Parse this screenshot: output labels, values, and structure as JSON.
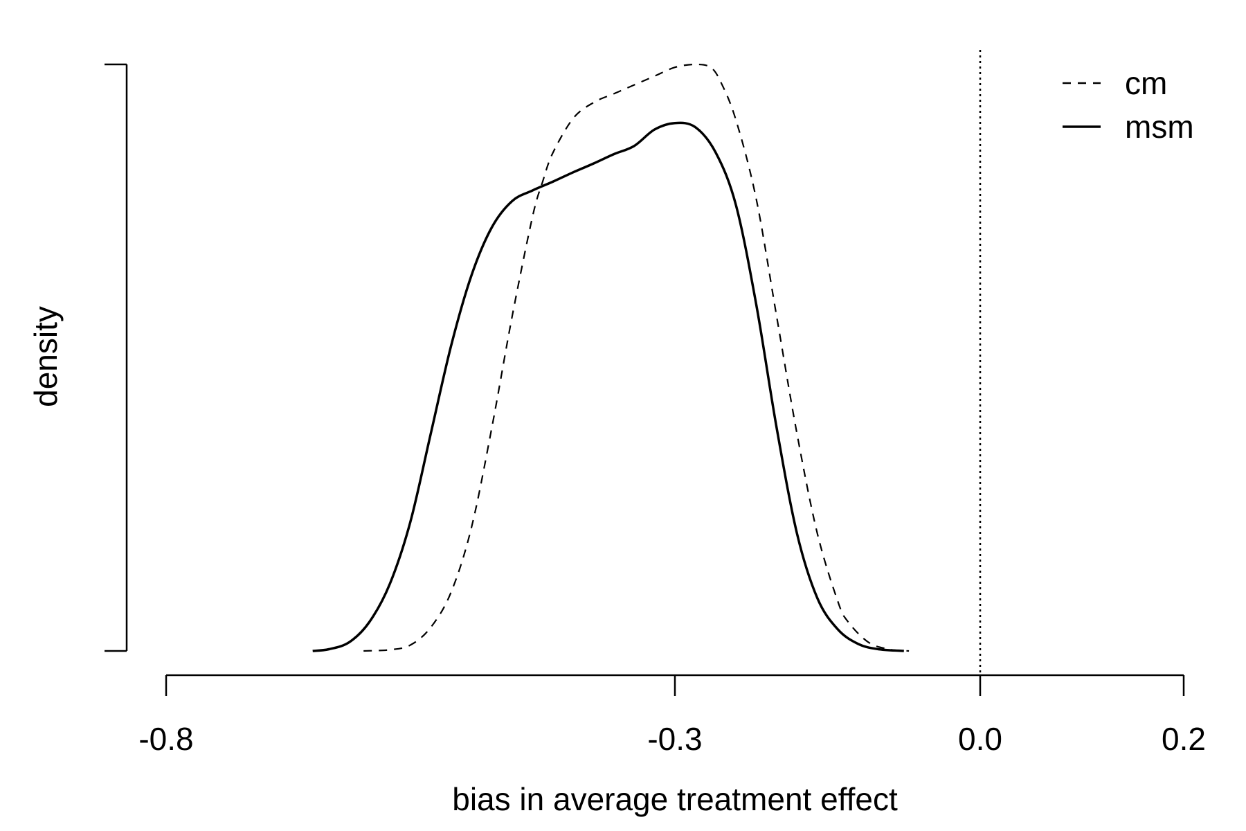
{
  "chart_data": {
    "type": "line",
    "title": "",
    "xlabel": "bias in average treatment effect",
    "ylabel": "density",
    "xlim": [
      -0.8,
      0.2
    ],
    "x_ticks": [
      {
        "value": -0.8,
        "label": "-0.8"
      },
      {
        "value": -0.3,
        "label": "-0.3"
      },
      {
        "value": 0.0,
        "label": "0.0"
      },
      {
        "value": 0.2,
        "label": "0.2"
      }
    ],
    "y_ticks": [
      0,
      1
    ],
    "y_tick_labels_shown": false,
    "reference_line": {
      "x": 0.0,
      "style": "dotted"
    },
    "grid": false,
    "legend_position": "top-right",
    "series": [
      {
        "name": "cm",
        "style": "dashed",
        "points": [
          [
            -0.606,
            0.0
          ],
          [
            -0.58,
            0.002
          ],
          [
            -0.56,
            0.01
          ],
          [
            -0.54,
            0.04
          ],
          [
            -0.52,
            0.1
          ],
          [
            -0.5,
            0.21
          ],
          [
            -0.48,
            0.38
          ],
          [
            -0.46,
            0.57
          ],
          [
            -0.44,
            0.74
          ],
          [
            -0.43,
            0.8
          ],
          [
            -0.42,
            0.849
          ],
          [
            -0.4,
            0.908
          ],
          [
            -0.38,
            0.935
          ],
          [
            -0.36,
            0.95
          ],
          [
            -0.34,
            0.965
          ],
          [
            -0.32,
            0.98
          ],
          [
            -0.3,
            0.995
          ],
          [
            -0.28,
            1.0
          ],
          [
            -0.265,
            0.995
          ],
          [
            -0.255,
            0.97
          ],
          [
            -0.24,
            0.905
          ],
          [
            -0.22,
            0.77
          ],
          [
            -0.2,
            0.57
          ],
          [
            -0.18,
            0.37
          ],
          [
            -0.16,
            0.2
          ],
          [
            -0.14,
            0.085
          ],
          [
            -0.13,
            0.05
          ],
          [
            -0.11,
            0.015
          ],
          [
            -0.09,
            0.003
          ],
          [
            -0.07,
            0.0
          ]
        ]
      },
      {
        "name": "msm",
        "style": "solid",
        "points": [
          [
            -0.656,
            0.0
          ],
          [
            -0.64,
            0.003
          ],
          [
            -0.62,
            0.015
          ],
          [
            -0.6,
            0.05
          ],
          [
            -0.58,
            0.115
          ],
          [
            -0.56,
            0.22
          ],
          [
            -0.54,
            0.37
          ],
          [
            -0.52,
            0.52
          ],
          [
            -0.5,
            0.64
          ],
          [
            -0.48,
            0.722
          ],
          [
            -0.46,
            0.767
          ],
          [
            -0.44,
            0.785
          ],
          [
            -0.42,
            0.8
          ],
          [
            -0.4,
            0.816
          ],
          [
            -0.38,
            0.831
          ],
          [
            -0.36,
            0.847
          ],
          [
            -0.34,
            0.861
          ],
          [
            -0.32,
            0.889
          ],
          [
            -0.3,
            0.9
          ],
          [
            -0.28,
            0.893
          ],
          [
            -0.26,
            0.85
          ],
          [
            -0.24,
            0.76
          ],
          [
            -0.22,
            0.59
          ],
          [
            -0.2,
            0.38
          ],
          [
            -0.18,
            0.2
          ],
          [
            -0.16,
            0.09
          ],
          [
            -0.14,
            0.037
          ],
          [
            -0.12,
            0.012
          ],
          [
            -0.1,
            0.003
          ],
          [
            -0.075,
            0.0
          ]
        ]
      }
    ]
  }
}
